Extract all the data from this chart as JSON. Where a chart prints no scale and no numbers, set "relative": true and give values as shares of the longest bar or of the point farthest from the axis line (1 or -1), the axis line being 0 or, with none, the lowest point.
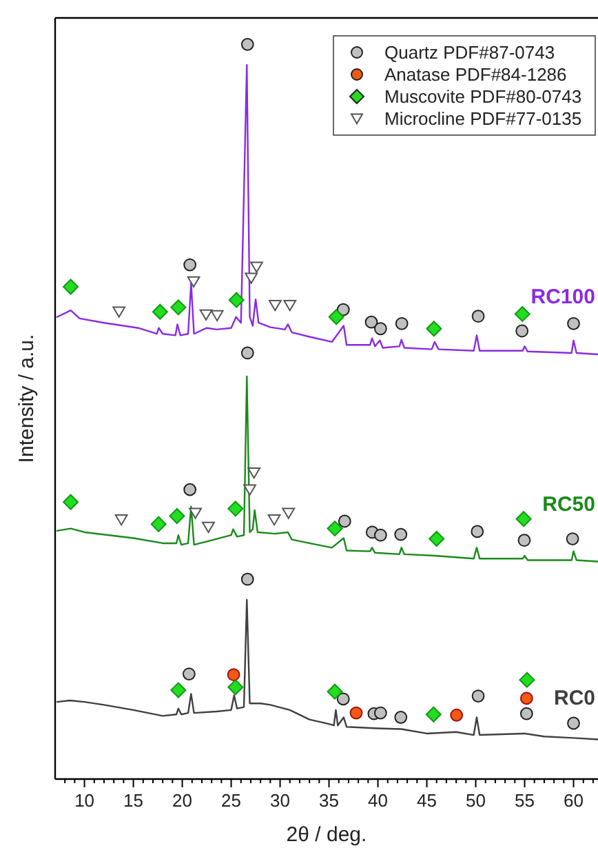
{
  "chart_data": {
    "type": "line",
    "relative": true,
    "xlabel": "2θ / deg.",
    "ylabel": "Intensity / a.u.",
    "xlim": [
      7,
      62.5
    ],
    "xticks": [
      {
        "value": 8,
        "label": null
      },
      {
        "value": 9,
        "label": null
      },
      10,
      {
        "value": 11,
        "label": null
      },
      {
        "value": 12,
        "label": null
      },
      {
        "value": 13,
        "label": null
      },
      {
        "value": 14,
        "label": null
      },
      15,
      {
        "value": 16,
        "label": null
      },
      {
        "value": 17,
        "label": null
      },
      {
        "value": 18,
        "label": null
      },
      {
        "value": 19,
        "label": null
      },
      20,
      {
        "value": 21,
        "label": null
      },
      {
        "value": 22,
        "label": null
      },
      {
        "value": 23,
        "label": null
      },
      {
        "value": 24,
        "label": null
      },
      25,
      {
        "value": 26,
        "label": null
      },
      {
        "value": 27,
        "label": null
      },
      {
        "value": 28,
        "label": null
      },
      {
        "value": 29,
        "label": null
      },
      30,
      {
        "value": 31,
        "label": null
      },
      {
        "value": 32,
        "label": null
      },
      {
        "value": 33,
        "label": null
      },
      {
        "value": 34,
        "label": null
      },
      35,
      {
        "value": 36,
        "label": null
      },
      {
        "value": 37,
        "label": null
      },
      {
        "value": 38,
        "label": null
      },
      {
        "value": 39,
        "label": null
      },
      40,
      {
        "value": 41,
        "label": null
      },
      {
        "value": 42,
        "label": null
      },
      {
        "value": 43,
        "label": null
      },
      {
        "value": 44,
        "label": null
      },
      45,
      {
        "value": 46,
        "label": null
      },
      {
        "value": 47,
        "label": null
      },
      {
        "value": 48,
        "label": null
      },
      {
        "value": 49,
        "label": null
      },
      50,
      {
        "value": 51,
        "label": null
      },
      {
        "value": 52,
        "label": null
      },
      {
        "value": 53,
        "label": null
      },
      {
        "value": 54,
        "label": null
      },
      55,
      {
        "value": 56,
        "label": null
      },
      {
        "value": 57,
        "label": null
      },
      {
        "value": 58,
        "label": null
      },
      {
        "value": 59,
        "label": null
      },
      60,
      {
        "value": 61,
        "label": null
      },
      {
        "value": 62,
        "label": null
      }
    ],
    "grid": false,
    "legend": "top right",
    "tick_labels": "x",
    "line_style": "solid",
    "series": [
      {
        "name": "RC100",
        "color": "#8a2be2",
        "x": [
          7.2,
          8.6,
          9.5,
          12,
          15.5,
          17.4,
          17.6,
          18,
          19.3,
          19.5,
          19.8,
          20.6,
          20.9,
          21.2,
          22.5,
          23.5,
          25,
          25.5,
          26,
          26.6,
          26.9,
          27.2,
          27.5,
          27.8,
          29,
          30.5,
          30.8,
          31.2,
          33,
          35.3,
          36.5,
          36.8,
          39.2,
          39.4,
          39.7,
          40.2,
          40.5,
          42.2,
          42.4,
          42.7,
          45.5,
          45.8,
          46.2,
          49.8,
          50.1,
          50.4,
          54.8,
          55,
          55.3,
          59.8,
          60,
          60.3,
          62.5
        ],
        "values": [
          0.629,
          0.638,
          0.627,
          0.621,
          0.614,
          0.606,
          0.614,
          0.606,
          0.604,
          0.619,
          0.604,
          0.606,
          0.675,
          0.606,
          0.614,
          0.612,
          0.614,
          0.629,
          0.621,
          0.972,
          0.629,
          0.617,
          0.653,
          0.621,
          0.615,
          0.612,
          0.619,
          0.608,
          0.602,
          0.595,
          0.617,
          0.591,
          0.591,
          0.6,
          0.589,
          0.597,
          0.587,
          0.589,
          0.598,
          0.587,
          0.585,
          0.595,
          0.585,
          0.583,
          0.604,
          0.583,
          0.583,
          0.589,
          0.582,
          0.58,
          0.597,
          0.58,
          0.578
        ]
      },
      {
        "name": "RC50",
        "color": "#1a8a1a",
        "x": [
          7.2,
          8.6,
          10,
          15,
          18,
          19.4,
          19.6,
          19.9,
          20.6,
          20.9,
          21.2,
          23,
          25,
          25.2,
          25.6,
          26.3,
          26.6,
          26.9,
          27.2,
          27.4,
          27.7,
          29.5,
          30.8,
          31.2,
          33,
          35.3,
          36.5,
          36.8,
          39.2,
          39.4,
          39.7,
          42.2,
          42.4,
          42.7,
          45.8,
          49.8,
          50.1,
          50.4,
          54.8,
          55,
          55.3,
          59.8,
          60,
          60.3,
          62.5
        ],
        "values": [
          0.338,
          0.341,
          0.336,
          0.328,
          0.321,
          0.321,
          0.332,
          0.319,
          0.321,
          0.371,
          0.319,
          0.325,
          0.332,
          0.34,
          0.33,
          0.332,
          0.548,
          0.336,
          0.34,
          0.366,
          0.336,
          0.334,
          0.336,
          0.326,
          0.321,
          0.315,
          0.328,
          0.311,
          0.31,
          0.315,
          0.308,
          0.306,
          0.315,
          0.306,
          0.304,
          0.3,
          0.315,
          0.3,
          0.3,
          0.304,
          0.298,
          0.298,
          0.31,
          0.298,
          0.296
        ]
      },
      {
        "name": "RC0",
        "color": "#404040",
        "x": [
          7.2,
          8.5,
          10,
          12,
          15,
          18,
          19.4,
          19.6,
          19.9,
          20.6,
          20.9,
          21.2,
          23.5,
          25,
          25.3,
          25.6,
          26.3,
          26.6,
          26.9,
          28,
          29,
          31,
          33,
          35,
          35.5,
          35.7,
          35.9,
          36.5,
          36.8,
          40,
          42.4,
          45,
          48,
          49.8,
          50.1,
          50.4,
          55,
          57,
          60,
          62.5
        ],
        "values": [
          0.105,
          0.107,
          0.105,
          0.101,
          0.094,
          0.086,
          0.088,
          0.096,
          0.088,
          0.09,
          0.116,
          0.09,
          0.092,
          0.094,
          0.114,
          0.096,
          0.098,
          0.244,
          0.103,
          0.103,
          0.101,
          0.094,
          0.081,
          0.075,
          0.073,
          0.094,
          0.073,
          0.084,
          0.071,
          0.069,
          0.068,
          0.062,
          0.064,
          0.06,
          0.084,
          0.06,
          0.062,
          0.058,
          0.056,
          0.054
        ]
      },
      {
        "name": "Quartz PDF#87-0743",
        "type": "scatter",
        "marker": "circle",
        "color": "#c0c0c0",
        "x": [
          26.67,
          20.78,
          36.46,
          39.33,
          40.27,
          42.44,
          50.25,
          54.73,
          60.0,
          26.67,
          20.78,
          36.6,
          39.42,
          40.27,
          42.34,
          50.16,
          54.96,
          59.9,
          26.67,
          20.69,
          36.46,
          39.6,
          40.27,
          42.34,
          50.25,
          55.2,
          60.0
        ],
        "values": [
          1.0,
          0.7,
          0.639,
          0.622,
          0.613,
          0.62,
          0.63,
          0.61,
          0.62,
          0.58,
          0.394,
          0.351,
          0.336,
          0.332,
          0.333,
          0.337,
          0.325,
          0.327,
          0.272,
          0.143,
          0.109,
          0.089,
          0.09,
          0.084,
          0.113,
          0.089,
          0.076
        ]
      },
      {
        "name": "Anatase PDF#84-1286",
        "type": "scatter",
        "marker": "circle",
        "color": "#f05a14",
        "x": [
          25.25,
          37.78,
          48.04,
          55.2
        ],
        "values": [
          0.142,
          0.09,
          0.087,
          0.11
        ]
      },
      {
        "name": "Muscovite PDF#80-0743",
        "type": "scatter",
        "marker": "diamond",
        "color": "#22dd22",
        "x": [
          8.59,
          17.73,
          19.6,
          25.54,
          35.75,
          45.73,
          54.77,
          8.59,
          17.58,
          19.46,
          25.44,
          35.6,
          46.0,
          54.9,
          19.6,
          25.44,
          35.6,
          45.69,
          55.24
        ],
        "values": [
          0.67,
          0.636,
          0.642,
          0.652,
          0.629,
          0.613,
          0.633,
          0.377,
          0.347,
          0.358,
          0.368,
          0.341,
          0.327,
          0.354,
          0.121,
          0.125,
          0.119,
          0.088,
          0.135
        ]
      },
      {
        "name": "Microcline PDF#77-0135",
        "type": "scatter",
        "marker": "triangle",
        "color": "#ffffff",
        "x": [
          13.53,
          21.16,
          22.43,
          23.56,
          27.05,
          27.6,
          29.49,
          31.0,
          13.77,
          21.34,
          22.67,
          26.9,
          27.33,
          29.4,
          30.86
        ],
        "values": [
          0.636,
          0.677,
          0.632,
          0.631,
          0.682,
          0.697,
          0.645,
          0.645,
          0.353,
          0.362,
          0.343,
          0.394,
          0.417,
          0.353,
          0.362
        ]
      }
    ]
  }
}
